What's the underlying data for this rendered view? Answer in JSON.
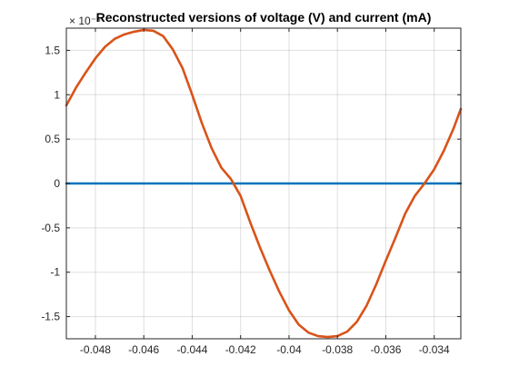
{
  "chart_data": {
    "type": "line",
    "title": "Reconstructed versions of voltage (V) and current (mA)",
    "xlabel": "",
    "ylabel": "",
    "y_exponent_label": "× 10⁻⁵",
    "xlim": [
      -0.0492,
      -0.0329
    ],
    "ylim": [
      -1.75,
      1.75
    ],
    "grid": true,
    "x_ticks": [
      -0.048,
      -0.046,
      -0.044,
      -0.042,
      -0.04,
      -0.038,
      -0.036,
      -0.034
    ],
    "x_tick_labels": [
      "-0.048",
      "-0.046",
      "-0.044",
      "-0.042",
      "-0.04",
      "-0.038",
      "-0.036",
      "-0.034"
    ],
    "y_ticks": [
      -1.5,
      -1,
      -0.5,
      0,
      0.5,
      1,
      1.5
    ],
    "y_tick_labels": [
      "-1.5",
      "-1",
      "-0.5",
      "0",
      "0.5",
      "1",
      "1.5"
    ],
    "series": [
      {
        "color": "#0072BD",
        "x": [
          -0.0492,
          -0.0329
        ],
        "y": [
          0.0,
          0.0
        ]
      },
      {
        "color": "#D95319",
        "x": [
          -0.0492,
          -0.0488,
          -0.0484,
          -0.048,
          -0.0476,
          -0.0472,
          -0.0468,
          -0.0464,
          -0.046,
          -0.0456,
          -0.0452,
          -0.0448,
          -0.0444,
          -0.044,
          -0.0436,
          -0.0432,
          -0.0428,
          -0.0424,
          -0.042,
          -0.0416,
          -0.0412,
          -0.0408,
          -0.0404,
          -0.04,
          -0.0396,
          -0.0392,
          -0.0388,
          -0.0384,
          -0.038,
          -0.0376,
          -0.0372,
          -0.0368,
          -0.0364,
          -0.036,
          -0.0356,
          -0.0352,
          -0.0348,
          -0.0344,
          -0.034,
          -0.0336,
          -0.0332,
          -0.0329
        ],
        "y": [
          0.88,
          1.08,
          1.25,
          1.41,
          1.54,
          1.63,
          1.68,
          1.71,
          1.73,
          1.72,
          1.66,
          1.51,
          1.3,
          1.0,
          0.68,
          0.4,
          0.18,
          0.05,
          -0.14,
          -0.44,
          -0.72,
          -0.98,
          -1.22,
          -1.43,
          -1.59,
          -1.68,
          -1.72,
          -1.73,
          -1.72,
          -1.67,
          -1.56,
          -1.38,
          -1.14,
          -0.87,
          -0.61,
          -0.34,
          -0.14,
          0.0,
          0.16,
          0.37,
          0.62,
          0.84
        ]
      }
    ]
  }
}
